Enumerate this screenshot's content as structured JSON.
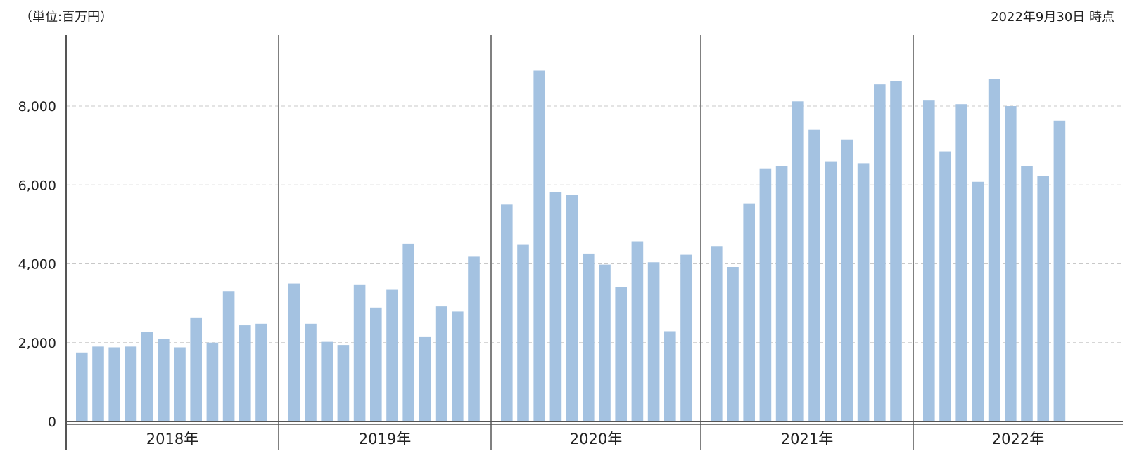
{
  "header": {
    "unit_label": "（単位:百万円）",
    "as_of_label": "2022年9月30日 時点"
  },
  "colors": {
    "bar": "#a4c2e1",
    "grid": "#c8c8c8",
    "axis": "#555555",
    "divider": "#808080"
  },
  "chart_data": {
    "type": "bar",
    "title": "",
    "xlabel": "",
    "ylabel": "",
    "ylim": [
      0,
      9800
    ],
    "yticks": [
      0,
      2000,
      4000,
      6000,
      8000
    ],
    "ytick_labels": [
      "0",
      "2,000",
      "4,000",
      "6,000",
      "8,000"
    ],
    "grid": true,
    "groups": [
      {
        "label": "2018年",
        "values": [
          1750,
          1900,
          1880,
          1900,
          2280,
          2100,
          1880,
          2640,
          2000,
          3310,
          2440,
          2480
        ]
      },
      {
        "label": "2019年",
        "values": [
          3500,
          2480,
          2020,
          1940,
          3460,
          2890,
          3340,
          4510,
          2140,
          2920,
          2790,
          4180
        ]
      },
      {
        "label": "2020年",
        "values": [
          5500,
          4480,
          8900,
          5820,
          5750,
          4260,
          3980,
          3420,
          4570,
          4040,
          2290,
          4230
        ]
      },
      {
        "label": "2021年",
        "values": [
          4450,
          3920,
          5530,
          6420,
          6480,
          8120,
          7400,
          6600,
          7150,
          6550,
          8550,
          8640
        ]
      },
      {
        "label": "2022年",
        "values": [
          8140,
          6850,
          8050,
          6080,
          8680,
          8000,
          6480,
          6220,
          7630
        ]
      }
    ]
  }
}
